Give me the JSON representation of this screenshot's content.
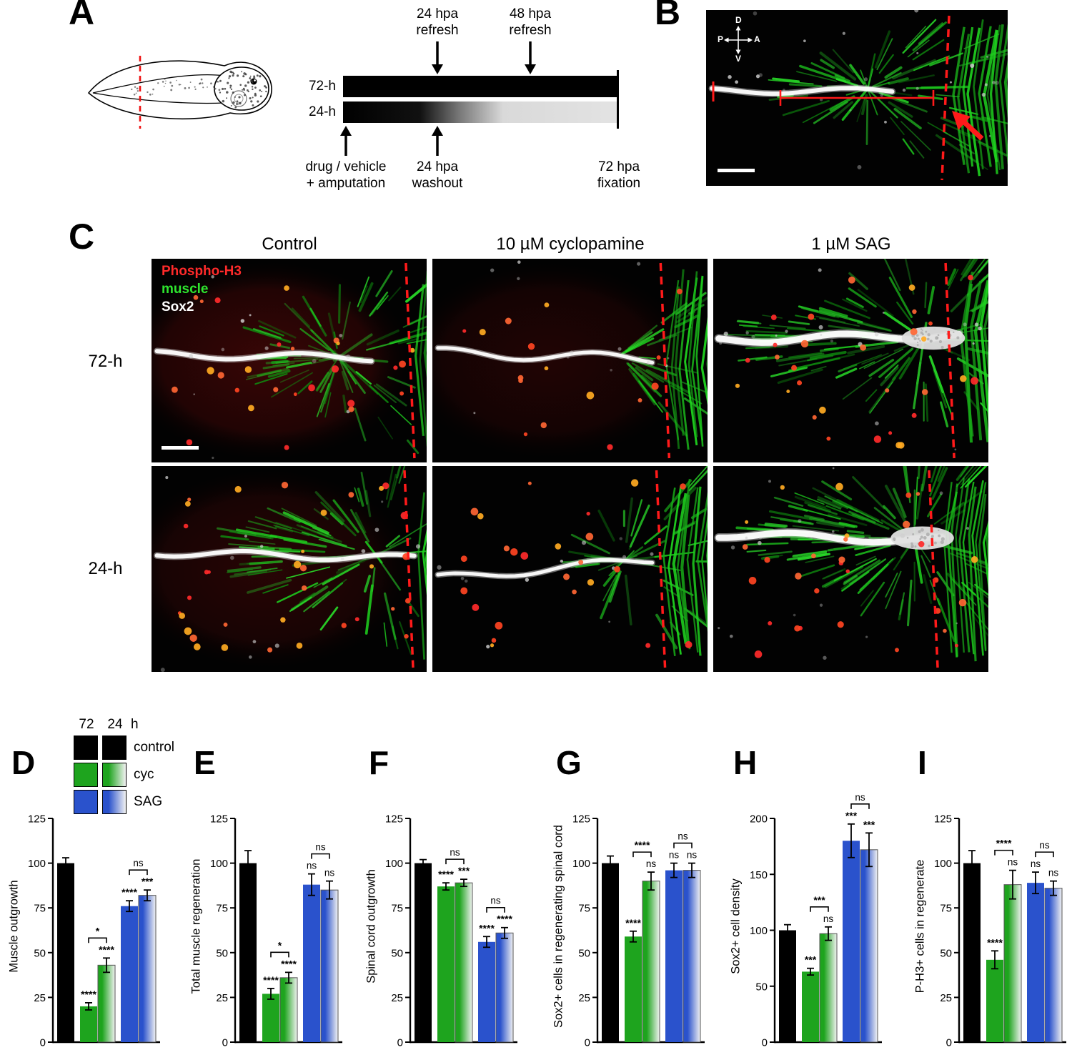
{
  "panels": {
    "A": {
      "label": "A",
      "timeline": {
        "top": [
          "24 hpa\nrefresh",
          "48 hpa\nrefresh"
        ],
        "rows": [
          "72-h",
          "24-h"
        ],
        "bottom": [
          "drug / vehicle\n+ amputation",
          "24 hpa\nwashout",
          "72 hpa\nfixation"
        ]
      }
    },
    "B": {
      "label": "B",
      "compass": {
        "up": "D",
        "down": "V",
        "left": "P",
        "right": "A"
      }
    },
    "C": {
      "label": "C",
      "columns": [
        "Control",
        "10 µM cyclopamine",
        "1 µM SAG"
      ],
      "rows": [
        "72-h",
        "24-h"
      ],
      "stains": [
        {
          "name": "Phospho-H3",
          "color": "#ff2a2a"
        },
        {
          "name": "muscle",
          "color": "#2ee52e"
        },
        {
          "name": "Sox2",
          "color": "#ffffff"
        }
      ]
    }
  },
  "legend": {
    "col72": "72",
    "col24": "24",
    "unit": "h",
    "items": [
      {
        "name": "control"
      },
      {
        "name": "cyc"
      },
      {
        "name": "SAG"
      }
    ]
  },
  "colors": {
    "control": "#000000",
    "cyc": "#1ea41e",
    "sag": "#2a52cc",
    "gradient_end": "#f2f2f2",
    "phospho_red": "#ff2a2a",
    "muscle_green": "#27d827",
    "sox2_white": "#ffffff",
    "annotation_red": "#ff1a1a"
  },
  "chart_data": [
    {
      "panel": "D",
      "type": "bar",
      "ylabel": "Muscle outgrowth",
      "ylim": [
        0,
        125
      ],
      "yticks": [
        0,
        25,
        50,
        75,
        100,
        125
      ],
      "categories": [
        "control 72-h",
        "cyclopamine 72-h",
        "cyclopamine 24-h",
        "SAG 72-h",
        "SAG 24-h"
      ],
      "values": [
        100,
        20,
        43,
        76,
        82
      ],
      "errors": [
        3,
        2,
        4,
        3,
        3
      ],
      "bar_sig": [
        "",
        "****",
        "****",
        "****",
        "***"
      ],
      "brackets": [
        {
          "from": 1,
          "to": 2,
          "label": "*"
        },
        {
          "from": 3,
          "to": 4,
          "label": "ns"
        }
      ]
    },
    {
      "panel": "E",
      "type": "bar",
      "ylabel": "Total muscle regeneration",
      "ylim": [
        0,
        125
      ],
      "yticks": [
        0,
        25,
        50,
        75,
        100,
        125
      ],
      "categories": [
        "control 72-h",
        "cyclopamine 72-h",
        "cyclopamine 24-h",
        "SAG 72-h",
        "SAG 24-h"
      ],
      "values": [
        100,
        27,
        36,
        88,
        85
      ],
      "errors": [
        7,
        3,
        3,
        6,
        5
      ],
      "bar_sig": [
        "",
        "****",
        "****",
        "ns",
        "ns"
      ],
      "brackets": [
        {
          "from": 1,
          "to": 2,
          "label": "*"
        },
        {
          "from": 3,
          "to": 4,
          "label": "ns"
        }
      ]
    },
    {
      "panel": "F",
      "type": "bar",
      "ylabel": "Spinal cord outgrowth",
      "ylim": [
        0,
        125
      ],
      "yticks": [
        0,
        25,
        50,
        75,
        100,
        125
      ],
      "categories": [
        "control 72-h",
        "cyclopamine 72-h",
        "cyclopamine 24-h",
        "SAG 72-h",
        "SAG 24-h"
      ],
      "values": [
        100,
        87,
        89,
        56,
        61
      ],
      "errors": [
        2,
        2,
        2,
        3,
        3
      ],
      "bar_sig": [
        "",
        "****",
        "***",
        "****",
        "****"
      ],
      "brackets": [
        {
          "from": 1,
          "to": 2,
          "label": "ns"
        },
        {
          "from": 3,
          "to": 4,
          "label": "ns"
        }
      ]
    },
    {
      "panel": "G",
      "type": "bar",
      "ylabel": "Sox2+ cells in regenerating spinal cord",
      "ylim": [
        0,
        125
      ],
      "yticks": [
        0,
        25,
        50,
        75,
        100,
        125
      ],
      "categories": [
        "control 72-h",
        "cyclopamine 72-h",
        "cyclopamine 24-h",
        "SAG 72-h",
        "SAG 24-h"
      ],
      "values": [
        100,
        59,
        90,
        96,
        96
      ],
      "errors": [
        4,
        3,
        5,
        4,
        4
      ],
      "bar_sig": [
        "",
        "****",
        "ns",
        "ns",
        "ns"
      ],
      "brackets": [
        {
          "from": 1,
          "to": 2,
          "label": "****"
        },
        {
          "from": 3,
          "to": 4,
          "label": "ns"
        }
      ]
    },
    {
      "panel": "H",
      "type": "bar",
      "ylabel": "Sox2+ cell density",
      "ylim": [
        0,
        200
      ],
      "yticks": [
        0,
        50,
        100,
        150,
        200
      ],
      "categories": [
        "control 72-h",
        "cyclopamine 72-h",
        "cyclopamine 24-h",
        "SAG 72-h",
        "SAG 24-h"
      ],
      "values": [
        100,
        63,
        97,
        180,
        172
      ],
      "errors": [
        5,
        3,
        6,
        15,
        15
      ],
      "bar_sig": [
        "",
        "***",
        "ns",
        "***",
        "***"
      ],
      "brackets": [
        {
          "from": 1,
          "to": 2,
          "label": "***"
        },
        {
          "from": 3,
          "to": 4,
          "label": "ns"
        }
      ]
    },
    {
      "panel": "I",
      "type": "bar",
      "ylabel": "P-H3+ cells in regenerate",
      "ylim": [
        0,
        125
      ],
      "yticks": [
        0,
        25,
        50,
        75,
        100,
        125
      ],
      "categories": [
        "control 72-h",
        "cyclopamine 72-h",
        "cyclopamine 24-h",
        "SAG 72-h",
        "SAG 24-h"
      ],
      "values": [
        100,
        46,
        88,
        89,
        86
      ],
      "errors": [
        7,
        5,
        8,
        6,
        4
      ],
      "bar_sig": [
        "",
        "****",
        "ns",
        "ns",
        "ns"
      ],
      "brackets": [
        {
          "from": 1,
          "to": 2,
          "label": "****"
        },
        {
          "from": 3,
          "to": 4,
          "label": "ns"
        }
      ]
    }
  ]
}
